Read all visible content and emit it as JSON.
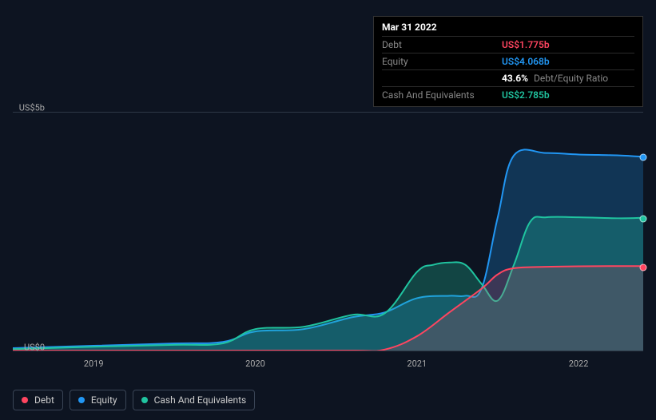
{
  "tooltip": {
    "date": "Mar 31 2022",
    "rows": {
      "debt_label": "Debt",
      "debt_value": "US$1.775b",
      "equity_label": "Equity",
      "equity_value": "US$4.068b",
      "ratio_pct": "43.6%",
      "ratio_label": "Debt/Equity Ratio",
      "cash_label": "Cash And Equivalents",
      "cash_value": "US$2.785b"
    }
  },
  "chart": {
    "type": "area",
    "background_color": "#0d1421",
    "grid_color": "#2e3947",
    "text_color": "#aaaaaa",
    "y_axis": {
      "min": 0,
      "max": 5,
      "labels": [
        {
          "value": 0,
          "text": "US$0"
        },
        {
          "value": 5,
          "text": "US$5b"
        }
      ]
    },
    "x_axis": {
      "min": 2018.5,
      "max": 2022.4,
      "ticks": [
        {
          "value": 2019,
          "text": "2019"
        },
        {
          "value": 2020,
          "text": "2020"
        },
        {
          "value": 2021,
          "text": "2021"
        },
        {
          "value": 2022,
          "text": "2022"
        }
      ]
    },
    "series": {
      "equity": {
        "name": "Equity",
        "color": "#2196f3",
        "fill": "rgba(33,150,243,0.25)",
        "points": [
          [
            2018.5,
            0.05
          ],
          [
            2019.0,
            0.1
          ],
          [
            2019.5,
            0.15
          ],
          [
            2019.8,
            0.18
          ],
          [
            2020.0,
            0.4
          ],
          [
            2020.3,
            0.45
          ],
          [
            2020.6,
            0.7
          ],
          [
            2020.8,
            0.8
          ],
          [
            2021.0,
            1.1
          ],
          [
            2021.2,
            1.15
          ],
          [
            2021.3,
            1.15
          ],
          [
            2021.4,
            1.3
          ],
          [
            2021.5,
            2.8
          ],
          [
            2021.6,
            4.1
          ],
          [
            2021.8,
            4.15
          ],
          [
            2022.0,
            4.12
          ],
          [
            2022.25,
            4.1
          ],
          [
            2022.4,
            4.07
          ]
        ]
      },
      "cash": {
        "name": "Cash And Equivalents",
        "color": "#20c4a0",
        "fill": "rgba(32,196,160,0.28)",
        "points": [
          [
            2018.5,
            0.03
          ],
          [
            2019.0,
            0.08
          ],
          [
            2019.5,
            0.12
          ],
          [
            2019.8,
            0.15
          ],
          [
            2020.0,
            0.45
          ],
          [
            2020.3,
            0.5
          ],
          [
            2020.6,
            0.75
          ],
          [
            2020.8,
            0.78
          ],
          [
            2021.0,
            1.65
          ],
          [
            2021.1,
            1.8
          ],
          [
            2021.2,
            1.85
          ],
          [
            2021.3,
            1.8
          ],
          [
            2021.4,
            1.4
          ],
          [
            2021.5,
            1.05
          ],
          [
            2021.6,
            1.8
          ],
          [
            2021.7,
            2.7
          ],
          [
            2021.8,
            2.8
          ],
          [
            2022.0,
            2.8
          ],
          [
            2022.25,
            2.78
          ],
          [
            2022.4,
            2.79
          ]
        ]
      },
      "debt": {
        "name": "Debt",
        "color": "#ff4560",
        "fill": "rgba(255,69,96,0.18)",
        "points": [
          [
            2018.5,
            0.0
          ],
          [
            2019.5,
            0.0
          ],
          [
            2020.0,
            0.0
          ],
          [
            2020.6,
            0.0
          ],
          [
            2020.8,
            0.02
          ],
          [
            2021.0,
            0.3
          ],
          [
            2021.2,
            0.8
          ],
          [
            2021.4,
            1.3
          ],
          [
            2021.5,
            1.6
          ],
          [
            2021.6,
            1.73
          ],
          [
            2021.8,
            1.76
          ],
          [
            2022.0,
            1.77
          ],
          [
            2022.25,
            1.775
          ],
          [
            2022.4,
            1.775
          ]
        ]
      }
    },
    "end_markers": [
      {
        "series": "equity",
        "x": 2022.4,
        "y": 4.07
      },
      {
        "series": "cash",
        "x": 2022.4,
        "y": 2.79
      },
      {
        "series": "debt",
        "x": 2022.4,
        "y": 1.775
      }
    ]
  },
  "legend": [
    {
      "key": "debt",
      "label": "Debt"
    },
    {
      "key": "equity",
      "label": "Equity"
    },
    {
      "key": "cash",
      "label": "Cash And Equivalents"
    }
  ]
}
